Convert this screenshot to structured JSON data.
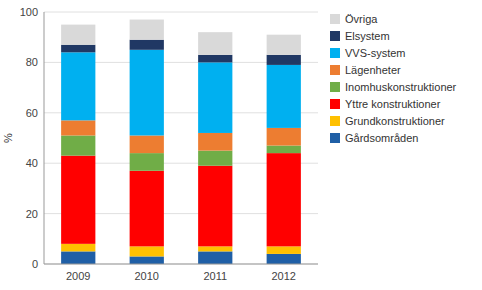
{
  "chart_data": {
    "type": "bar",
    "stacked": true,
    "ylabel": "%",
    "categories": [
      "2009",
      "2010",
      "2011",
      "2012"
    ],
    "series": [
      {
        "name": "Gårdsområden",
        "color": "#1f5fa6",
        "values": [
          5,
          3,
          5,
          4
        ]
      },
      {
        "name": "Grundkonstruktioner",
        "color": "#ffc000",
        "values": [
          3,
          4,
          2,
          3
        ]
      },
      {
        "name": "Yttre konstruktioner",
        "color": "#ff0000",
        "values": [
          35,
          30,
          32,
          37
        ]
      },
      {
        "name": "Inomhuskonstruktioner",
        "color": "#70ad47",
        "values": [
          8,
          7,
          6,
          3
        ]
      },
      {
        "name": "Lägenheter",
        "color": "#ed7d31",
        "values": [
          6,
          7,
          7,
          7
        ]
      },
      {
        "name": "VVS-system",
        "color": "#00b0f0",
        "values": [
          27,
          34,
          28,
          25
        ]
      },
      {
        "name": "Elsystem",
        "color": "#203864",
        "values": [
          3,
          4,
          3,
          4
        ]
      },
      {
        "name": "Övriga",
        "color": "#d9d9d9",
        "values": [
          8,
          8,
          9,
          8
        ]
      }
    ],
    "ylim": [
      0,
      100
    ],
    "yticks": [
      0,
      20,
      40,
      60,
      80,
      100
    ],
    "grid": true,
    "legend": "right"
  }
}
